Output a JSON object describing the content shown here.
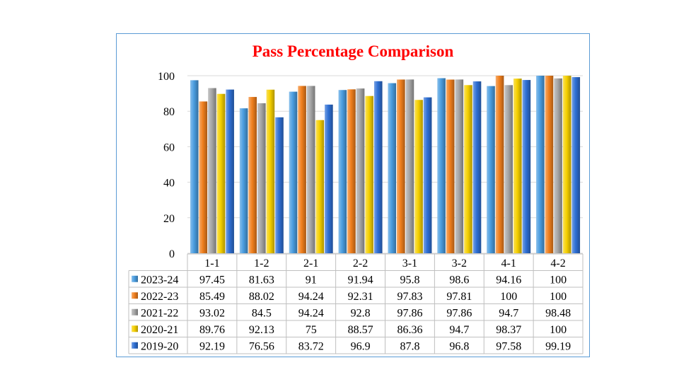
{
  "chart_data": {
    "type": "bar",
    "title": "Pass Percentage Comparison",
    "title_color": "#ff0000",
    "categories": [
      "1-1",
      "1-2",
      "2-1",
      "2-2",
      "3-1",
      "3-2",
      "4-1",
      "4-2"
    ],
    "series": [
      {
        "name": "2023-24",
        "color": "#4a9de0",
        "values": [
          97.45,
          81.63,
          91,
          91.94,
          95.8,
          98.6,
          94.16,
          100
        ]
      },
      {
        "name": "2022-23",
        "color": "#f07f1d",
        "values": [
          85.49,
          88.02,
          94.24,
          92.31,
          97.83,
          97.81,
          100,
          100
        ]
      },
      {
        "name": "2021-22",
        "color": "#a6a6a6",
        "values": [
          93.02,
          84.5,
          94.24,
          92.8,
          97.86,
          97.86,
          94.7,
          98.48
        ]
      },
      {
        "name": "2020-21",
        "color": "#f5d000",
        "values": [
          89.76,
          92.13,
          75,
          88.57,
          86.36,
          94.7,
          98.37,
          100
        ]
      },
      {
        "name": "2019-20",
        "color": "#2e6fd4",
        "values": [
          92.19,
          76.56,
          83.72,
          96.9,
          87.8,
          96.8,
          97.58,
          99.19
        ]
      }
    ],
    "y_ticks": [
      0,
      20,
      40,
      60,
      80,
      100
    ],
    "ylim": [
      0,
      100
    ],
    "xlabel": "",
    "ylabel": "",
    "grid": true,
    "legend": "data-table"
  }
}
